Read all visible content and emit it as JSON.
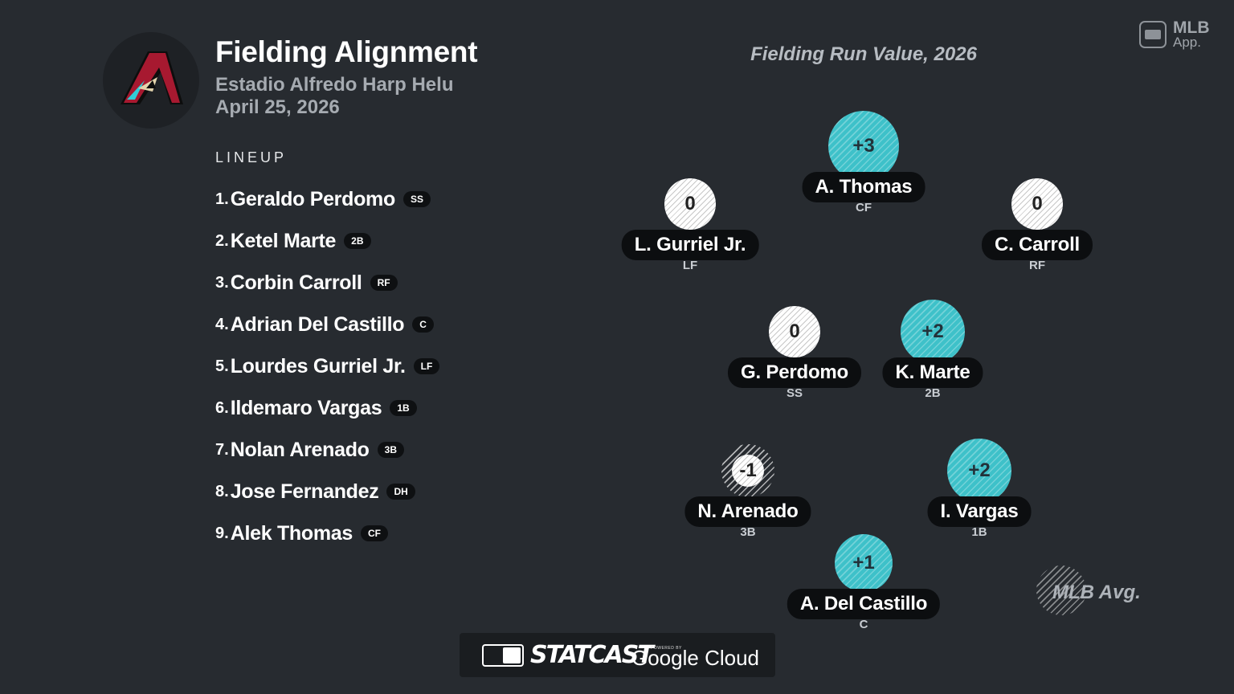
{
  "header": {
    "title": "Fielding Alignment",
    "venue": "Estadio Alfredo Harp Helu",
    "date": "April 25, 2026",
    "chart_title": "Fielding Run Value, 2026",
    "app_badge_line1": "MLB",
    "app_badge_line2": "App."
  },
  "lineup": {
    "label": "LINEUP",
    "players": [
      {
        "num": "1.",
        "name": "Geraldo Perdomo",
        "pos": "SS"
      },
      {
        "num": "2.",
        "name": "Ketel Marte",
        "pos": "2B"
      },
      {
        "num": "3.",
        "name": "Corbin Carroll",
        "pos": "RF"
      },
      {
        "num": "4.",
        "name": "Adrian Del Castillo",
        "pos": "C"
      },
      {
        "num": "5.",
        "name": "Lourdes Gurriel Jr.",
        "pos": "LF"
      },
      {
        "num": "6.",
        "name": "Ildemaro Vargas",
        "pos": "1B"
      },
      {
        "num": "7.",
        "name": "Nolan Arenado",
        "pos": "3B"
      },
      {
        "num": "8.",
        "name": "Jose Fernandez",
        "pos": "DH"
      },
      {
        "num": "9.",
        "name": "Alek Thomas",
        "pos": "CF"
      }
    ]
  },
  "field": {
    "players": [
      {
        "id": "cf",
        "value": "+3",
        "name": "A. Thomas",
        "pos": "CF",
        "frv": 3
      },
      {
        "id": "lf",
        "value": "0",
        "name": "L. Gurriel Jr.",
        "pos": "LF",
        "frv": 0
      },
      {
        "id": "rf",
        "value": "0",
        "name": "C. Carroll",
        "pos": "RF",
        "frv": 0
      },
      {
        "id": "ss",
        "value": "0",
        "name": "G. Perdomo",
        "pos": "SS",
        "frv": 0
      },
      {
        "id": "2b",
        "value": "+2",
        "name": "K. Marte",
        "pos": "2B",
        "frv": 2
      },
      {
        "id": "3b",
        "value": "-1",
        "name": "N. Arenado",
        "pos": "3B",
        "frv": -1
      },
      {
        "id": "1b",
        "value": "+2",
        "name": "I. Vargas",
        "pos": "1B",
        "frv": 2
      },
      {
        "id": "c",
        "value": "+1",
        "name": "A. Del Castillo",
        "pos": "C",
        "frv": 1
      }
    ],
    "legend_label": "MLB Avg."
  },
  "footer": {
    "statcast": "STATCAST",
    "powered_by": "POWERED BY",
    "google_cloud": "Google Cloud"
  },
  "colors": {
    "background": "#272b30",
    "positive": "#3ec1c9",
    "neutral": "#ffffff"
  }
}
